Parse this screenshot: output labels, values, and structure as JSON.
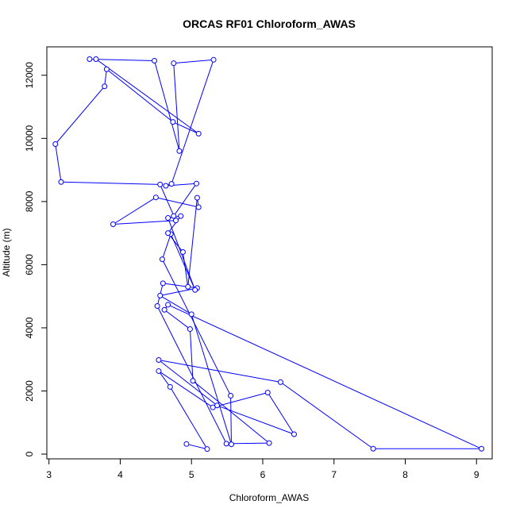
{
  "chart_data": {
    "type": "line",
    "title": "ORCAS RF01 Chloroform_AWAS",
    "xlabel": "Chloroform_AWAS",
    "ylabel": "Altitude (m)",
    "xlim": [
      2.97,
      9.22
    ],
    "ylim": [
      -150,
      12900
    ],
    "xticks": [
      3,
      4,
      5,
      6,
      7,
      8,
      9
    ],
    "yticks": [
      0,
      2000,
      4000,
      6000,
      8000,
      10000,
      12000
    ],
    "grid": false,
    "series": [
      {
        "color": "#0000ff",
        "marker": "open-circle",
        "x": [
          4.93,
          5.22,
          4.7,
          4.54,
          5.3,
          6.07,
          6.44,
          5.36,
          4.54,
          6.25,
          7.55,
          9.07,
          4.67,
          4.62,
          4.98,
          5.02,
          6.09,
          5.49,
          4.52,
          4.6,
          5.08,
          4.56,
          5.0,
          5.56,
          5.55,
          4.59,
          4.71,
          5.05,
          4.67,
          4.85,
          4.67,
          4.88,
          4.95,
          5.08,
          5.1,
          4.5,
          3.9,
          4.78,
          4.56,
          3.17,
          3.09,
          3.78,
          3.81,
          4.74,
          5.1,
          3.66,
          3.57,
          4.48,
          4.83,
          4.75,
          5.31,
          4.72,
          4.64,
          5.07,
          4.75
        ],
        "y": [
          320,
          160,
          2130,
          2630,
          1480,
          1950,
          630,
          1540,
          2980,
          2280,
          170,
          170,
          4730,
          4570,
          3960,
          2320,
          350,
          330,
          4690,
          5410,
          5260,
          5020,
          4430,
          310,
          1850,
          6170,
          6970,
          5200,
          7480,
          7540,
          7000,
          6400,
          5300,
          8120,
          7820,
          8130,
          7280,
          7400,
          8540,
          8620,
          9820,
          11650,
          12190,
          10520,
          10150,
          12510,
          12510,
          12460,
          9600,
          12380,
          12490,
          8560,
          8500,
          8570,
          7540
        ]
      }
    ]
  }
}
